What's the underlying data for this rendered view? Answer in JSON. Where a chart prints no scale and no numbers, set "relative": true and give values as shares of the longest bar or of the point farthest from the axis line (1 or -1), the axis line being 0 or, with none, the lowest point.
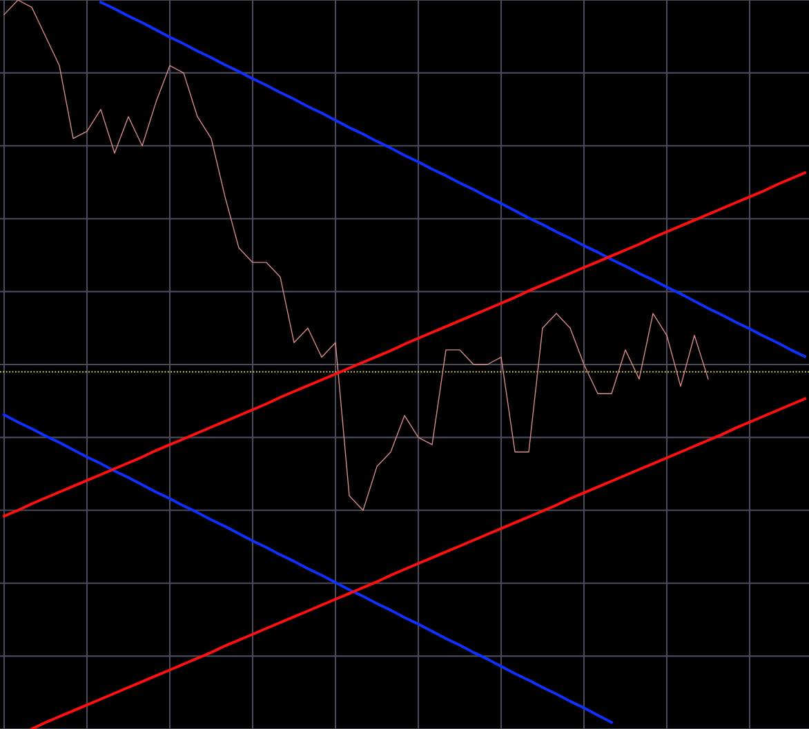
{
  "chart_data": {
    "type": "line",
    "relative": true,
    "grid": true,
    "tick_labels": false,
    "line_style": "solid",
    "marker": "none",
    "categories": [
      null,
      null,
      null,
      null,
      null,
      null,
      null,
      null,
      null,
      null,
      null,
      null,
      null,
      null,
      null,
      null,
      null,
      null,
      null,
      null,
      null,
      null,
      null,
      null,
      null,
      null,
      null,
      null,
      null,
      null,
      null,
      null,
      null,
      null,
      null,
      null,
      null,
      null,
      null,
      null,
      null,
      null,
      null,
      null,
      null,
      null,
      null,
      null,
      null,
      null,
      null,
      null,
      null,
      null,
      null,
      null,
      null,
      null,
      null
    ],
    "series": [
      {
        "color": "#d98c8c",
        "values": [
          0.98,
          1.0,
          0.99,
          0.95,
          0.91,
          0.81,
          0.82,
          0.85,
          0.79,
          0.84,
          0.8,
          0.86,
          0.91,
          0.9,
          0.84,
          0.81,
          0.73,
          0.66,
          0.64,
          0.64,
          0.62,
          0.53,
          0.55,
          0.51,
          0.53,
          0.32,
          0.3,
          0.36,
          0.38,
          0.43,
          0.4,
          0.39,
          0.52,
          0.52,
          0.5,
          0.5,
          0.51,
          0.38,
          0.38,
          0.55,
          0.57,
          0.55,
          0.5,
          0.46,
          0.46,
          0.52,
          0.48,
          0.57,
          0.54,
          0.47,
          0.54,
          0.48,
          null,
          null,
          null,
          null,
          null,
          null,
          null
        ]
      },
      {
        "color": "#1030ff",
        "values": [
          null,
          null,
          null,
          null,
          null,
          null,
          null,
          0.997,
          0.988,
          0.978,
          0.969,
          0.959,
          0.949,
          0.94,
          0.93,
          0.921,
          0.911,
          0.902,
          0.892,
          0.883,
          0.873,
          0.864,
          0.854,
          0.845,
          0.835,
          0.825,
          0.816,
          0.806,
          0.797,
          0.787,
          0.778,
          0.768,
          0.759,
          0.749,
          0.74,
          0.73,
          0.721,
          0.711,
          0.701,
          0.692,
          0.682,
          0.673,
          0.663,
          0.654,
          0.644,
          0.635,
          0.625,
          0.616,
          0.606,
          0.597,
          0.587,
          0.577,
          0.568,
          0.558,
          0.549,
          0.539,
          0.53,
          0.52,
          0.511
        ]
      },
      {
        "color": "#1030ff",
        "values": [
          0.431,
          0.421,
          0.412,
          0.402,
          0.393,
          0.383,
          0.373,
          0.364,
          0.354,
          0.345,
          0.335,
          0.325,
          0.316,
          0.306,
          0.297,
          0.287,
          0.278,
          0.268,
          0.258,
          0.249,
          0.239,
          0.23,
          0.22,
          0.211,
          0.201,
          0.191,
          0.182,
          0.172,
          0.163,
          0.153,
          0.144,
          0.134,
          0.124,
          0.115,
          0.105,
          0.096,
          0.086,
          0.076,
          0.067,
          0.057,
          0.048,
          0.038,
          0.029,
          0.019,
          0.009,
          null,
          null,
          null,
          null,
          null,
          null,
          null,
          null,
          null,
          null,
          null,
          null,
          null,
          null
        ]
      },
      {
        "color": "#ff1010",
        "values": [
          0.292,
          0.3,
          0.309,
          0.317,
          0.325,
          0.333,
          0.341,
          0.349,
          0.357,
          0.365,
          0.373,
          0.382,
          0.39,
          0.398,
          0.406,
          0.414,
          0.422,
          0.43,
          0.438,
          0.446,
          0.455,
          0.463,
          0.471,
          0.479,
          0.487,
          0.495,
          0.503,
          0.511,
          0.519,
          0.528,
          0.536,
          0.544,
          0.552,
          0.56,
          0.568,
          0.576,
          0.584,
          0.592,
          0.601,
          0.609,
          0.617,
          0.625,
          0.633,
          0.641,
          0.649,
          0.657,
          0.665,
          0.674,
          0.682,
          0.69,
          0.698,
          0.706,
          0.714,
          0.722,
          0.73,
          0.738,
          0.747,
          0.755,
          0.763
        ]
      },
      {
        "color": "#ff1010",
        "values": [
          null,
          null,
          0.0,
          0.009,
          0.017,
          0.025,
          0.033,
          0.041,
          0.049,
          0.057,
          0.065,
          0.073,
          0.081,
          0.089,
          0.097,
          0.105,
          0.114,
          0.122,
          0.13,
          0.138,
          0.146,
          0.154,
          0.162,
          0.17,
          0.178,
          0.186,
          0.194,
          0.202,
          0.211,
          0.219,
          0.227,
          0.235,
          0.243,
          0.251,
          0.259,
          0.267,
          0.275,
          0.283,
          0.291,
          0.299,
          0.307,
          0.316,
          0.324,
          0.332,
          0.34,
          0.348,
          0.356,
          0.364,
          0.372,
          0.38,
          0.388,
          0.396,
          0.404,
          0.413,
          0.421,
          0.429,
          0.437,
          0.445,
          0.453
        ]
      }
    ],
    "ref_lines": [
      {
        "axis": "y",
        "value": 0.49,
        "color": "#ffff66",
        "line_style": "dotted"
      }
    ]
  }
}
